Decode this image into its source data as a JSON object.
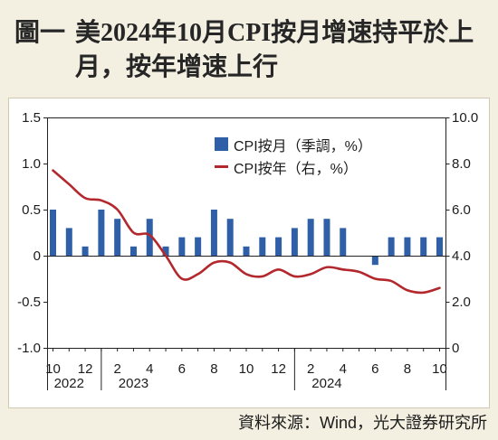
{
  "colors": {
    "page_background": "#f3efe1",
    "panel_background": "#ffffff",
    "bar": "#2f5fa7",
    "line": "#b3282d",
    "text": "#1c1c1c",
    "title": "#262626"
  },
  "chart_data": {
    "type": "bar",
    "figure_label": "圖一",
    "title_lines": [
      "美2024年10月CPI按月增速持平於上",
      "月，按年增速上行"
    ],
    "x": [
      "2022-10",
      "2022-11",
      "2022-12",
      "2023-01",
      "2023-02",
      "2023-03",
      "2023-04",
      "2023-05",
      "2023-06",
      "2023-07",
      "2023-08",
      "2023-09",
      "2023-10",
      "2023-11",
      "2023-12",
      "2024-01",
      "2024-02",
      "2024-03",
      "2024-04",
      "2024-05",
      "2024-06",
      "2024-07",
      "2024-08",
      "2024-09",
      "2024-10"
    ],
    "x_ticks": [
      {
        "x": "2022-10",
        "label": "10"
      },
      {
        "x": "2022-12",
        "label": "12"
      },
      {
        "x": "2023-02",
        "label": "2"
      },
      {
        "x": "2023-04",
        "label": "4"
      },
      {
        "x": "2023-06",
        "label": "6"
      },
      {
        "x": "2023-08",
        "label": "8"
      },
      {
        "x": "2023-10",
        "label": "10"
      },
      {
        "x": "2023-12",
        "label": "12"
      },
      {
        "x": "2024-02",
        "label": "2"
      },
      {
        "x": "2024-04",
        "label": "4"
      },
      {
        "x": "2024-06",
        "label": "6"
      },
      {
        "x": "2024-08",
        "label": "8"
      },
      {
        "x": "2024-10",
        "label": "10"
      }
    ],
    "year_groups": [
      {
        "label": "2022",
        "from": "2022-10",
        "to": "2022-12"
      },
      {
        "label": "2023",
        "from": "2023-01",
        "to": "2023-12"
      },
      {
        "label": "2024",
        "from": "2024-01",
        "to": "2024-10"
      }
    ],
    "series": [
      {
        "name": "CPI按月（季調，%）",
        "type": "bar",
        "axis": "left",
        "values": [
          0.5,
          0.3,
          0.1,
          0.5,
          0.4,
          0.1,
          0.4,
          0.1,
          0.2,
          0.2,
          0.5,
          0.4,
          0.1,
          0.2,
          0.2,
          0.3,
          0.4,
          0.4,
          0.3,
          0.0,
          -0.1,
          0.2,
          0.2,
          0.2,
          0.2
        ]
      },
      {
        "name": "CPI按年（右，%）",
        "type": "line",
        "axis": "right",
        "values": [
          7.7,
          7.1,
          6.5,
          6.4,
          6.0,
          5.0,
          4.9,
          4.0,
          3.0,
          3.2,
          3.7,
          3.7,
          3.2,
          3.1,
          3.4,
          3.1,
          3.2,
          3.5,
          3.4,
          3.3,
          3.0,
          2.9,
          2.5,
          2.4,
          2.6
        ]
      }
    ],
    "y_left": {
      "min": -1.0,
      "max": 1.5,
      "ticks": [
        "1.5",
        "1.0",
        "0.5",
        "0",
        "-0.5",
        "-1.0"
      ]
    },
    "y_right": {
      "min": 0,
      "max": 10.0,
      "ticks": [
        "10.0",
        "8.0",
        "6.0",
        "4.0",
        "2.0",
        "0"
      ]
    },
    "legend_position": "top-center",
    "grid": false
  },
  "footer": {
    "source": "資料來源：Wind，光大證券研究所"
  }
}
